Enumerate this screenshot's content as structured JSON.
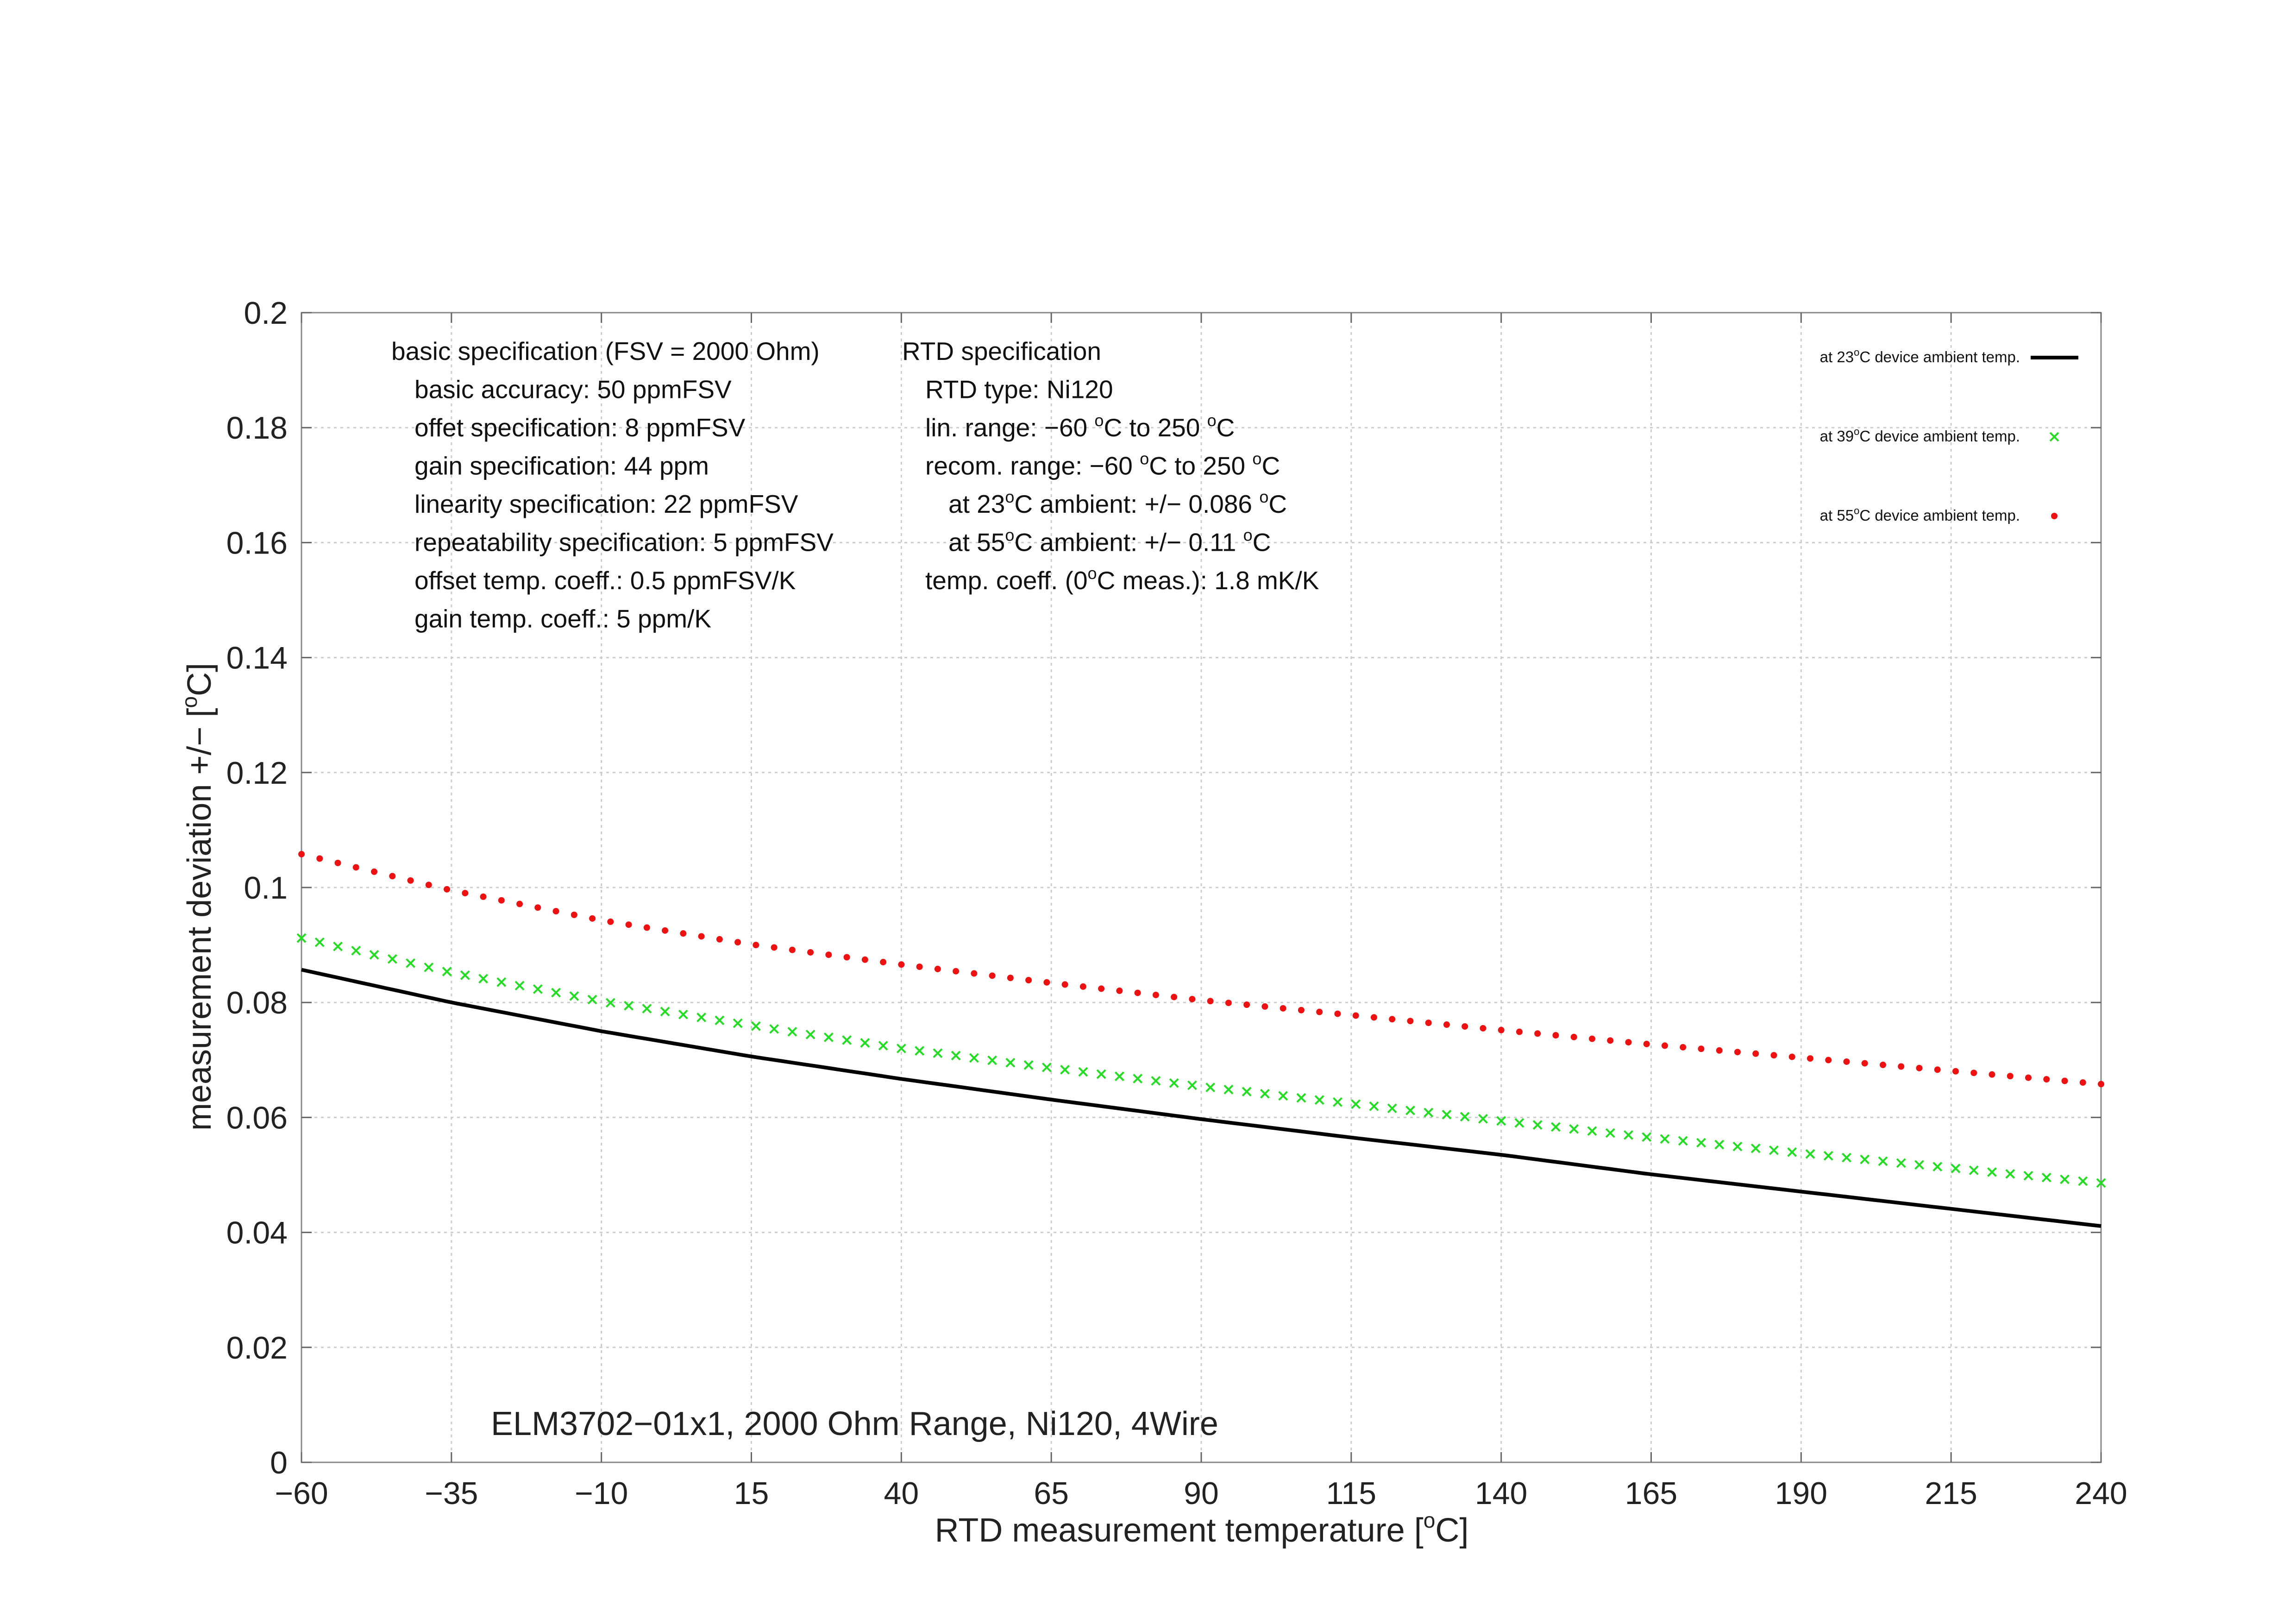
{
  "chart_data": {
    "type": "line",
    "title": "ELM3702−01x1, 2000 Ohm Range, Ni120, 4Wire",
    "xlabel": "RTD measurement temperature [",
    "xlabel_sup": "o",
    "xlabel_end": "C]",
    "ylabel": "measurement deviation +/− [",
    "ylabel_sup": "o",
    "ylabel_end": "C]",
    "xlim": [
      -60,
      240
    ],
    "ylim": [
      0,
      0.2
    ],
    "xticks": [
      -60,
      -35,
      -10,
      15,
      40,
      65,
      90,
      115,
      140,
      165,
      190,
      215,
      240
    ],
    "xtick_labels": [
      "−60",
      "−35",
      "−10",
      "15",
      "40",
      "65",
      "90",
      "115",
      "140",
      "165",
      "190",
      "215",
      "240"
    ],
    "yticks": [
      0,
      0.02,
      0.04,
      0.06,
      0.08,
      0.1,
      0.12,
      0.14,
      0.16,
      0.18,
      0.2
    ],
    "ytick_labels": [
      "0",
      "0.02",
      "0.04",
      "0.06",
      "0.08",
      "0.1",
      "0.12",
      "0.14",
      "0.16",
      "0.18",
      "0.2"
    ],
    "grid": true,
    "legend_position": "top-right",
    "series": [
      {
        "name_pre": "at 23",
        "name_sup": "o",
        "name_post": "C device ambient temp.",
        "style": "line",
        "color": "#000000",
        "x": [
          -60,
          -35,
          -10,
          15,
          40,
          65,
          90,
          115,
          140,
          165,
          190,
          215,
          240
        ],
        "values": [
          0.0857,
          0.08,
          0.075,
          0.0706,
          0.0667,
          0.0631,
          0.0597,
          0.0565,
          0.0535,
          0.0501,
          0.0471,
          0.0441,
          0.0411
        ]
      },
      {
        "name_pre": "at 39",
        "name_sup": "o",
        "name_post": "C device ambient temp.",
        "style": "cross",
        "color": "#22dd22",
        "x": [
          -60,
          -35,
          -10,
          15,
          40,
          65,
          90,
          115,
          140,
          165,
          190,
          215,
          240
        ],
        "values": [
          0.0912,
          0.0852,
          0.0802,
          0.076,
          0.072,
          0.0686,
          0.0654,
          0.0624,
          0.0594,
          0.0565,
          0.0538,
          0.0512,
          0.0486
        ]
      },
      {
        "name_pre": "at 55",
        "name_sup": "o",
        "name_post": "C device ambient temp.",
        "style": "dot",
        "color": "#ee1111",
        "x": [
          -60,
          -35,
          -10,
          15,
          40,
          65,
          90,
          115,
          140,
          165,
          190,
          215,
          240
        ],
        "values": [
          0.1058,
          0.0995,
          0.0943,
          0.0901,
          0.0866,
          0.0834,
          0.0804,
          0.0778,
          0.0752,
          0.0727,
          0.0704,
          0.0681,
          0.0658
        ]
      }
    ],
    "annotation_left": [
      [
        {
          "t": "basic specification (FSV = 2000 Ohm)"
        }
      ],
      [
        {
          "t": "basic accuracy: 50 ppmFSV"
        }
      ],
      [
        {
          "t": "offet specification: 8 ppmFSV"
        }
      ],
      [
        {
          "t": "gain specification: 44 ppm"
        }
      ],
      [
        {
          "t": "linearity specification: 22 ppmFSV"
        }
      ],
      [
        {
          "t": "repeatability specification: 5 ppmFSV"
        }
      ],
      [
        {
          "t": "offset temp. coeff.: 0.5 ppmFSV/K"
        }
      ],
      [
        {
          "t": "gain temp. coeff.: 5 ppm/K"
        }
      ]
    ],
    "annotation_right": [
      [
        {
          "t": "RTD specification"
        }
      ],
      [
        {
          "t": "RTD type: Ni120"
        }
      ],
      [
        {
          "t": "lin. range: −60 "
        },
        {
          "s": "o"
        },
        {
          "t": "C to 250 "
        },
        {
          "s": "o"
        },
        {
          "t": "C"
        }
      ],
      [
        {
          "t": "recom. range: −60 "
        },
        {
          "s": "o"
        },
        {
          "t": "C to 250 "
        },
        {
          "s": "o"
        },
        {
          "t": "C"
        }
      ],
      [
        {
          "t": "at 23"
        },
        {
          "s": "o"
        },
        {
          "t": "C ambient: +/− 0.086 "
        },
        {
          "s": "o"
        },
        {
          "t": "C"
        }
      ],
      [
        {
          "t": "at 55"
        },
        {
          "s": "o"
        },
        {
          "t": "C ambient: +/− 0.11 "
        },
        {
          "s": "o"
        },
        {
          "t": "C"
        }
      ],
      [
        {
          "t": "temp. coeff. (0"
        },
        {
          "s": "o"
        },
        {
          "t": "C meas.): 1.8 mK/K"
        }
      ]
    ]
  }
}
